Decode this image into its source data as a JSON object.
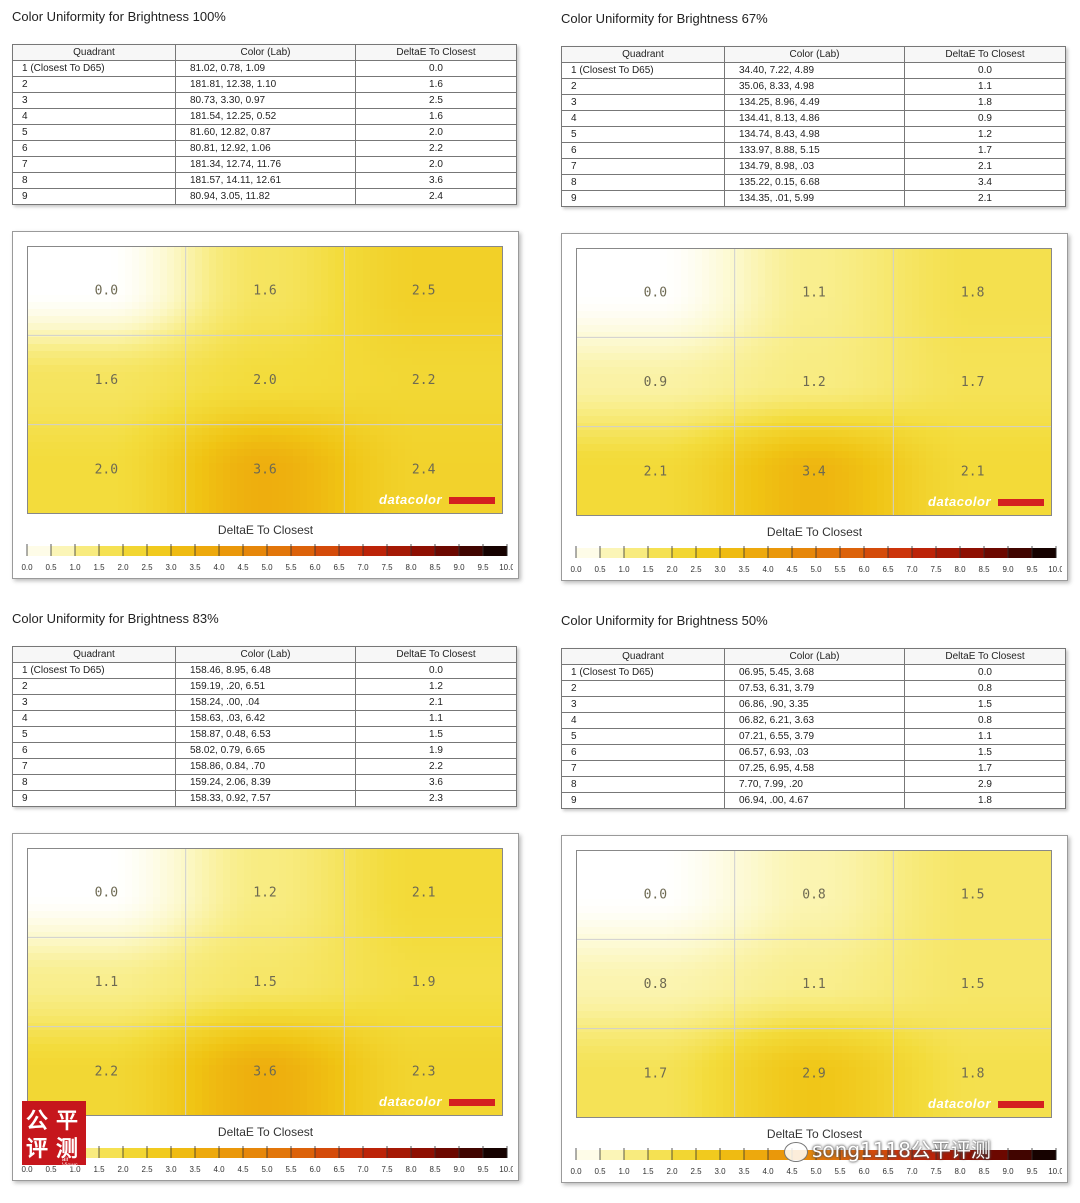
{
  "panels": [
    {
      "id": "100",
      "title": "Color Uniformity for Brightness 100%",
      "headers": [
        "Quadrant",
        "Color (Lab)",
        "DeltaE To Closest"
      ],
      "rows": [
        [
          "1 (Closest To D65)",
          "81.02,   0.78,   1.09",
          "0.0"
        ],
        [
          "2",
          "181.81,  12.38,   1.10",
          "1.6"
        ],
        [
          "3",
          "80.73,   3.30,   0.97",
          "2.5"
        ],
        [
          "4",
          "181.54,  12.25,   0.52",
          "1.6"
        ],
        [
          "5",
          "81.60,  12.82,   0.87",
          "2.0"
        ],
        [
          "6",
          "80.81,  12.92,   1.06",
          "2.2"
        ],
        [
          "7",
          "181.34,  12.74,  11.76",
          "2.0"
        ],
        [
          "8",
          "181.57,  14.11,  12.61",
          "3.6"
        ],
        [
          "9",
          "80.94,   3.05,  11.82",
          "2.4"
        ]
      ],
      "grid_values": [
        "0.0",
        "1.6",
        "2.5",
        "1.6",
        "2.0",
        "2.2",
        "2.0",
        "3.6",
        "2.4"
      ]
    },
    {
      "id": "67",
      "title": "Color Uniformity for Brightness 67%",
      "headers": [
        "Quadrant",
        "Color (Lab)",
        "DeltaE To Closest"
      ],
      "rows": [
        [
          "1 (Closest To D65)",
          "34.40,   7.22,   4.89",
          "0.0"
        ],
        [
          "2",
          "35.06,   8.33,   4.98",
          "1.1"
        ],
        [
          "3",
          "134.25,   8.96,   4.49",
          "1.8"
        ],
        [
          "4",
          "134.41,   8.13,   4.86",
          "0.9"
        ],
        [
          "5",
          "134.74,   8.43,   4.98",
          "1.2"
        ],
        [
          "6",
          "133.97,   8.88,   5.15",
          "1.7"
        ],
        [
          "7",
          "134.79,   8.98,    .03",
          "2.1"
        ],
        [
          "8",
          "135.22,   0.15,   6.68",
          "3.4"
        ],
        [
          "9",
          "134.35,    .01,   5.99",
          "2.1"
        ]
      ],
      "grid_values": [
        "0.0",
        "1.1",
        "1.8",
        "0.9",
        "1.2",
        "1.7",
        "2.1",
        "3.4",
        "2.1"
      ]
    },
    {
      "id": "83",
      "title": "Color Uniformity for Brightness 83%",
      "headers": [
        "Quadrant",
        "Color (Lab)",
        "DeltaE To Closest"
      ],
      "rows": [
        [
          "1 (Closest To D65)",
          "158.46,   8.95,   6.48",
          "0.0"
        ],
        [
          "2",
          "159.19,    .20,   6.51",
          "1.2"
        ],
        [
          "3",
          "158.24,    .00,    .04",
          "2.1"
        ],
        [
          "4",
          "158.63,    .03,   6.42",
          "1.1"
        ],
        [
          "5",
          "158.87,   0.48,   6.53",
          "1.5"
        ],
        [
          "6",
          "58.02,   0.79,   6.65",
          "1.9"
        ],
        [
          "7",
          "158.86,   0.84,    .70",
          "2.2"
        ],
        [
          "8",
          "159.24,   2.06,   8.39",
          "3.6"
        ],
        [
          "9",
          "158.33,   0.92,   7.57",
          "2.3"
        ]
      ],
      "grid_values": [
        "0.0",
        "1.2",
        "2.1",
        "1.1",
        "1.5",
        "1.9",
        "2.2",
        "3.6",
        "2.3"
      ]
    },
    {
      "id": "50",
      "title": "Color Uniformity for Brightness 50%",
      "headers": [
        "Quadrant",
        "Color (Lab)",
        "DeltaE To Closest"
      ],
      "rows": [
        [
          "1 (Closest To D65)",
          "06.95,   5.45,   3.68",
          "0.0"
        ],
        [
          "2",
          "07.53,   6.31,   3.79",
          "0.8"
        ],
        [
          "3",
          "06.86,    .90,   3.35",
          "1.5"
        ],
        [
          "4",
          "06.82,   6.21,   3.63",
          "0.8"
        ],
        [
          "5",
          "07.21,   6.55,   3.79",
          "1.1"
        ],
        [
          "6",
          "06.57,   6.93,    .03",
          "1.5"
        ],
        [
          "7",
          "07.25,   6.95,   4.58",
          "1.7"
        ],
        [
          "8",
          "7.70,   7.99,    .20",
          "2.9"
        ],
        [
          "9",
          "06.94,    .00,   4.67",
          "1.8"
        ]
      ],
      "grid_values": [
        "0.0",
        "0.8",
        "1.5",
        "0.8",
        "1.1",
        "1.5",
        "1.7",
        "2.9",
        "1.8"
      ]
    }
  ],
  "legend_title": "DeltaE To Closest",
  "brand": "datacolor",
  "watermark": {
    "chars": [
      "公",
      "平",
      "评",
      "测"
    ],
    "small": "air Views"
  },
  "wechat": "song1118公平评测",
  "colors": {
    "accent_bar": "#d42020",
    "watermark_bg": "#c6161c"
  },
  "chart_data": [
    {
      "type": "heatmap",
      "title": "Color Uniformity for Brightness 100%",
      "legend": "DeltaE To Closest",
      "rows": [
        "1",
        "2",
        "3"
      ],
      "cols": [
        "1",
        "2",
        "3"
      ],
      "values": [
        [
          0.0,
          1.6,
          2.5
        ],
        [
          1.6,
          2.0,
          2.2
        ],
        [
          2.0,
          3.6,
          2.4
        ]
      ],
      "scale_ticks": [
        "0.0",
        "0.5",
        "1.0",
        "1.5",
        "2.0",
        "2.5",
        "3.0",
        "3.5",
        "4.0",
        "4.5",
        "5.0",
        "5.5",
        "6.0",
        "6.5",
        "7.0",
        "7.5",
        "8.0",
        "8.5",
        "9.0",
        "9.5",
        "10.0"
      ],
      "scale_range": [
        0,
        10
      ]
    },
    {
      "type": "heatmap",
      "title": "Color Uniformity for Brightness 67%",
      "legend": "DeltaE To Closest",
      "rows": [
        "1",
        "2",
        "3"
      ],
      "cols": [
        "1",
        "2",
        "3"
      ],
      "values": [
        [
          0.0,
          1.1,
          1.8
        ],
        [
          0.9,
          1.2,
          1.7
        ],
        [
          2.1,
          3.4,
          2.1
        ]
      ],
      "scale_ticks": [
        "0.0",
        "0.5",
        "1.0",
        "1.5",
        "2.0",
        "2.5",
        "3.0",
        "3.5",
        "4.0",
        "4.5",
        "5.0",
        "5.5",
        "6.0",
        "6.5",
        "7.0",
        "7.5",
        "8.0",
        "8.5",
        "9.0",
        "9.5",
        "10.0"
      ],
      "scale_range": [
        0,
        10
      ]
    },
    {
      "type": "heatmap",
      "title": "Color Uniformity for Brightness 83%",
      "legend": "DeltaE To Closest",
      "rows": [
        "1",
        "2",
        "3"
      ],
      "cols": [
        "1",
        "2",
        "3"
      ],
      "values": [
        [
          0.0,
          1.2,
          2.1
        ],
        [
          1.1,
          1.5,
          1.9
        ],
        [
          2.2,
          3.6,
          2.3
        ]
      ],
      "scale_ticks": [
        "0.0",
        "0.5",
        "1.0",
        "1.5",
        "2.0",
        "2.5",
        "3.0",
        "3.5",
        "4.0",
        "4.5",
        "5.0",
        "5.5",
        "6.0",
        "6.5",
        "7.0",
        "7.5",
        "8.0",
        "8.5",
        "9.0",
        "9.5",
        "10.0"
      ],
      "scale_range": [
        0,
        10
      ]
    },
    {
      "type": "heatmap",
      "title": "Color Uniformity for Brightness 50%",
      "legend": "DeltaE To Closest",
      "rows": [
        "1",
        "2",
        "3"
      ],
      "cols": [
        "1",
        "2",
        "3"
      ],
      "values": [
        [
          0.0,
          0.8,
          1.5
        ],
        [
          0.8,
          1.1,
          1.5
        ],
        [
          1.7,
          2.9,
          1.8
        ]
      ],
      "scale_ticks": [
        "0.0",
        "0.5",
        "1.0",
        "1.5",
        "2.0",
        "2.5",
        "3.0",
        "3.5",
        "4.0",
        "4.5",
        "5.0",
        "5.5",
        "6.0",
        "6.5",
        "7.0",
        "7.5",
        "8.0",
        "8.5",
        "9.0",
        "9.5",
        "10.0"
      ],
      "scale_range": [
        0,
        10
      ]
    }
  ]
}
